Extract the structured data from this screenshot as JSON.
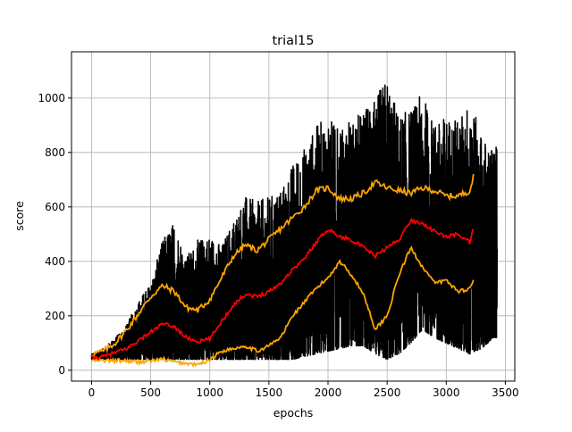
{
  "chart_data": {
    "type": "line",
    "title": "trial15",
    "xlabel": "epochs",
    "ylabel": "score",
    "xlim": [
      -170,
      3580
    ],
    "ylim": [
      -40,
      1170
    ],
    "xticks": [
      0,
      500,
      1000,
      1500,
      2000,
      2500,
      3000,
      3500
    ],
    "yticks": [
      0,
      200,
      400,
      600,
      800,
      1000
    ],
    "grid": true,
    "legend": "none",
    "colors": {
      "raw": "#000000",
      "mean": "#ff0000",
      "band": "#ffa500",
      "grid": "#b0b0b0"
    },
    "series": [
      {
        "role": "raw",
        "x_range": [
          0,
          3430
        ],
        "points": 3431,
        "envelope_upper": [
          [
            0,
            60
          ],
          [
            100,
            80
          ],
          [
            200,
            120
          ],
          [
            300,
            170
          ],
          [
            400,
            260
          ],
          [
            500,
            320
          ],
          [
            600,
            480
          ],
          [
            700,
            550
          ],
          [
            800,
            420
          ],
          [
            900,
            480
          ],
          [
            1000,
            500
          ],
          [
            1100,
            460
          ],
          [
            1200,
            560
          ],
          [
            1300,
            640
          ],
          [
            1400,
            620
          ],
          [
            1500,
            640
          ],
          [
            1600,
            660
          ],
          [
            1700,
            760
          ],
          [
            1800,
            820
          ],
          [
            1900,
            900
          ],
          [
            2000,
            940
          ],
          [
            2100,
            880
          ],
          [
            2200,
            920
          ],
          [
            2300,
            960
          ],
          [
            2400,
            1000
          ],
          [
            2500,
            1080
          ],
          [
            2600,
            940
          ],
          [
            2700,
            960
          ],
          [
            2800,
            1020
          ],
          [
            2900,
            900
          ],
          [
            3000,
            940
          ],
          [
            3100,
            920
          ],
          [
            3200,
            1000
          ],
          [
            3300,
            860
          ],
          [
            3400,
            820
          ]
        ],
        "envelope_lower": [
          [
            0,
            40
          ],
          [
            100,
            40
          ],
          [
            200,
            40
          ],
          [
            300,
            40
          ],
          [
            400,
            40
          ],
          [
            500,
            40
          ],
          [
            600,
            40
          ],
          [
            700,
            40
          ],
          [
            800,
            40
          ],
          [
            900,
            40
          ],
          [
            1000,
            40
          ],
          [
            1100,
            40
          ],
          [
            1200,
            40
          ],
          [
            1300,
            40
          ],
          [
            1400,
            40
          ],
          [
            1500,
            40
          ],
          [
            1600,
            40
          ],
          [
            1700,
            40
          ],
          [
            1800,
            50
          ],
          [
            1900,
            60
          ],
          [
            2000,
            70
          ],
          [
            2100,
            80
          ],
          [
            2200,
            90
          ],
          [
            2300,
            90
          ],
          [
            2400,
            60
          ],
          [
            2500,
            40
          ],
          [
            2600,
            60
          ],
          [
            2700,
            100
          ],
          [
            2800,
            150
          ],
          [
            2900,
            120
          ],
          [
            3000,
            100
          ],
          [
            3100,
            80
          ],
          [
            3200,
            60
          ],
          [
            3300,
            80
          ],
          [
            3400,
            120
          ]
        ]
      },
      {
        "role": "mean",
        "points": [
          [
            0,
            45
          ],
          [
            100,
            50
          ],
          [
            200,
            65
          ],
          [
            300,
            80
          ],
          [
            400,
            110
          ],
          [
            500,
            140
          ],
          [
            600,
            170
          ],
          [
            700,
            160
          ],
          [
            800,
            120
          ],
          [
            900,
            105
          ],
          [
            1000,
            115
          ],
          [
            1100,
            180
          ],
          [
            1200,
            240
          ],
          [
            1300,
            280
          ],
          [
            1400,
            270
          ],
          [
            1500,
            290
          ],
          [
            1600,
            320
          ],
          [
            1700,
            370
          ],
          [
            1800,
            410
          ],
          [
            1900,
            470
          ],
          [
            2000,
            520
          ],
          [
            2100,
            490
          ],
          [
            2200,
            480
          ],
          [
            2300,
            450
          ],
          [
            2400,
            420
          ],
          [
            2500,
            450
          ],
          [
            2600,
            480
          ],
          [
            2700,
            550
          ],
          [
            2800,
            540
          ],
          [
            2900,
            510
          ],
          [
            3000,
            490
          ],
          [
            3100,
            500
          ],
          [
            3200,
            470
          ],
          [
            3230,
            520
          ]
        ]
      },
      {
        "role": "upper",
        "points": [
          [
            0,
            60
          ],
          [
            100,
            70
          ],
          [
            200,
            100
          ],
          [
            300,
            150
          ],
          [
            400,
            210
          ],
          [
            500,
            270
          ],
          [
            600,
            310
          ],
          [
            700,
            290
          ],
          [
            800,
            230
          ],
          [
            900,
            220
          ],
          [
            1000,
            260
          ],
          [
            1100,
            340
          ],
          [
            1200,
            420
          ],
          [
            1300,
            460
          ],
          [
            1400,
            440
          ],
          [
            1500,
            480
          ],
          [
            1600,
            520
          ],
          [
            1700,
            560
          ],
          [
            1800,
            600
          ],
          [
            1900,
            660
          ],
          [
            2000,
            670
          ],
          [
            2100,
            630
          ],
          [
            2200,
            630
          ],
          [
            2300,
            650
          ],
          [
            2400,
            690
          ],
          [
            2500,
            670
          ],
          [
            2600,
            660
          ],
          [
            2700,
            650
          ],
          [
            2800,
            670
          ],
          [
            2900,
            660
          ],
          [
            3000,
            640
          ],
          [
            3100,
            640
          ],
          [
            3200,
            660
          ],
          [
            3230,
            710
          ]
        ]
      },
      {
        "role": "lower",
        "points": [
          [
            0,
            35
          ],
          [
            100,
            35
          ],
          [
            200,
            35
          ],
          [
            300,
            35
          ],
          [
            400,
            30
          ],
          [
            500,
            35
          ],
          [
            600,
            40
          ],
          [
            700,
            30
          ],
          [
            800,
            25
          ],
          [
            900,
            20
          ],
          [
            1000,
            40
          ],
          [
            1100,
            70
          ],
          [
            1200,
            80
          ],
          [
            1300,
            90
          ],
          [
            1400,
            70
          ],
          [
            1500,
            90
          ],
          [
            1600,
            120
          ],
          [
            1700,
            200
          ],
          [
            1800,
            250
          ],
          [
            1900,
            300
          ],
          [
            2000,
            340
          ],
          [
            2100,
            400
          ],
          [
            2200,
            350
          ],
          [
            2300,
            280
          ],
          [
            2400,
            150
          ],
          [
            2500,
            200
          ],
          [
            2600,
            350
          ],
          [
            2700,
            450
          ],
          [
            2800,
            380
          ],
          [
            2900,
            320
          ],
          [
            3000,
            330
          ],
          [
            3100,
            290
          ],
          [
            3200,
            300
          ],
          [
            3230,
            330
          ]
        ]
      }
    ]
  }
}
